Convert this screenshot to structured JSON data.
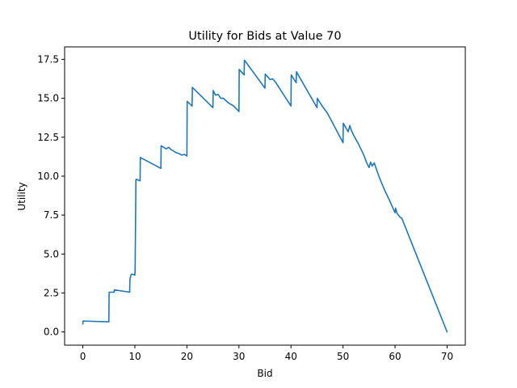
{
  "chart_data": {
    "type": "line",
    "title": "Utility for Bids at Value 70",
    "xlabel": "Bid",
    "ylabel": "Utility",
    "xlim": [
      -3.5,
      73.5
    ],
    "ylim": [
      -0.85,
      18.3
    ],
    "x_ticks": [
      0,
      10,
      20,
      30,
      40,
      50,
      60,
      70
    ],
    "x_tick_labels": [
      "0",
      "10",
      "20",
      "30",
      "40",
      "50",
      "60",
      "70"
    ],
    "y_ticks": [
      0,
      2.5,
      5,
      7.5,
      10,
      12.5,
      15,
      17.5
    ],
    "y_tick_labels": [
      "0.0",
      "2.5",
      "5.0",
      "7.5",
      "10.0",
      "12.5",
      "15.0",
      "17.5"
    ],
    "grid": false,
    "line_color": "#1f77b4",
    "series": [
      {
        "x": [
          0,
          0.05,
          5,
          5.05,
          6,
          6.05,
          9,
          9.05,
          9.3,
          9.6,
          10,
          10.05,
          10.2,
          10.25,
          11,
          11.05,
          15,
          15.05,
          16,
          16.5,
          17,
          18,
          18.5,
          19,
          19.5,
          20,
          20.05,
          21,
          21.05,
          25,
          25.05,
          25.5,
          26,
          26.5,
          27,
          27.5,
          28,
          29,
          30,
          30.05,
          31,
          31.05,
          35,
          35.05,
          36,
          36.5,
          37,
          40,
          40.05,
          41,
          41.05,
          45,
          45.05,
          46,
          47,
          50,
          50.05,
          51,
          51.3,
          51.6,
          52,
          53,
          54,
          54.5,
          55,
          55.3,
          55.6,
          56,
          57,
          58,
          59,
          60,
          60.1,
          60.4,
          61,
          61.3,
          70
        ],
        "y": [
          0.5,
          0.7,
          0.65,
          2.55,
          2.55,
          2.7,
          2.55,
          3.4,
          3.7,
          3.7,
          3.65,
          4.0,
          9.75,
          9.8,
          9.7,
          11.2,
          10.5,
          11.95,
          11.75,
          11.85,
          11.7,
          11.5,
          11.45,
          11.35,
          11.4,
          11.3,
          14.8,
          14.5,
          15.7,
          14.4,
          15.5,
          15.2,
          15.25,
          15.0,
          15.0,
          14.85,
          14.7,
          14.5,
          14.15,
          16.85,
          16.5,
          17.45,
          15.65,
          16.55,
          16.2,
          16.25,
          16.05,
          14.5,
          16.5,
          16.0,
          16.7,
          14.4,
          15.0,
          14.5,
          14.05,
          12.15,
          13.4,
          12.85,
          13.25,
          12.95,
          12.65,
          12.05,
          11.35,
          10.9,
          10.55,
          10.9,
          10.65,
          10.85,
          9.9,
          9.1,
          8.4,
          7.65,
          7.95,
          7.6,
          7.35,
          7.3,
          0.0
        ]
      }
    ]
  }
}
